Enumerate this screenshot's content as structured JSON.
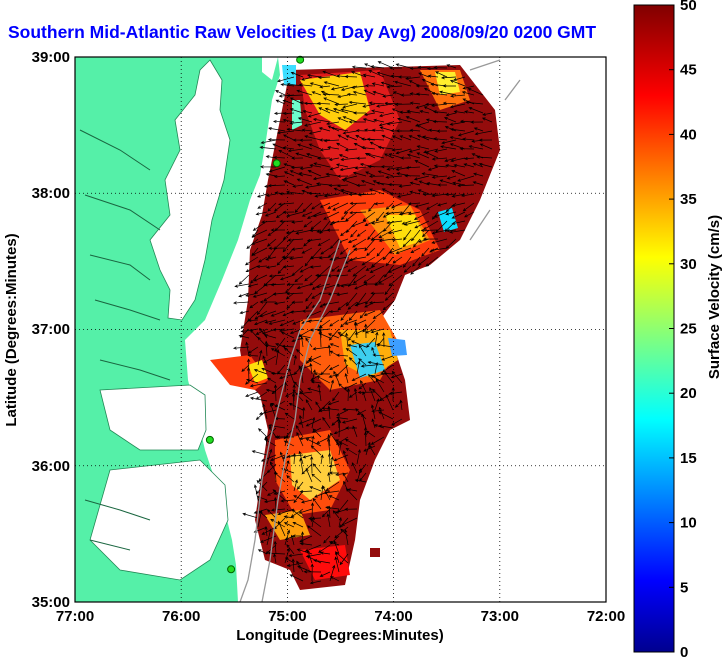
{
  "title": "Southern Mid-Atlantic Raw Velocities (1 Day Avg) 2008/09/20 0200 GMT",
  "map": {
    "xlabel": "Longitude (Degrees:Minutes)",
    "ylabel": "Latitude (Degrees:Minutes)",
    "x_ticks": [
      "77:00",
      "76:00",
      "75:00",
      "74:00",
      "73:00",
      "72:00"
    ],
    "y_ticks": [
      "39:00",
      "38:00",
      "37:00",
      "36:00",
      "35:00"
    ],
    "lon_range": [
      -77,
      -72
    ],
    "lat_range": [
      35,
      39
    ],
    "grid": "dotted",
    "colors": {
      "land": "#55f0a8",
      "ocean": "#ffffff",
      "arrows": "#000000",
      "stations": "#22dd22"
    }
  },
  "colorbar": {
    "label": "Surface Velocity (cm/s)",
    "ticks": [
      "0",
      "5",
      "10",
      "15",
      "20",
      "25",
      "30",
      "35",
      "40",
      "45",
      "50"
    ],
    "range": [
      0,
      50
    ],
    "colormap": "jet"
  },
  "stations": [
    {
      "lon": -74.88,
      "lat": 38.98
    },
    {
      "lon": -75.1,
      "lat": 38.22
    },
    {
      "lon": -75.73,
      "lat": 36.19
    },
    {
      "lon": -75.53,
      "lat": 35.24
    }
  ]
}
